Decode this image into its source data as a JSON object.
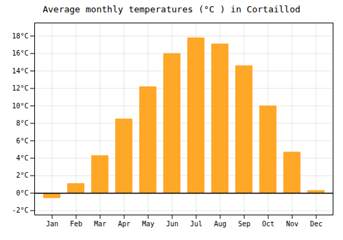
{
  "chart_data": {
    "type": "bar",
    "title": "Average monthly temperatures (°C ) in Cortaillod",
    "categories": [
      "Jan",
      "Feb",
      "Mar",
      "Apr",
      "May",
      "Jun",
      "Jul",
      "Aug",
      "Sep",
      "Oct",
      "Nov",
      "Dec"
    ],
    "values": [
      -0.6,
      1.1,
      4.3,
      8.5,
      12.2,
      16.0,
      17.8,
      17.1,
      14.6,
      10.0,
      4.7,
      0.3
    ],
    "color": "#FFA726",
    "ylim": [
      -2.5,
      19.5
    ],
    "yticks": [
      {
        "value": -2,
        "label": "-2°C"
      },
      {
        "value": 0,
        "label": "0°C"
      },
      {
        "value": 2,
        "label": "2°C"
      },
      {
        "value": 4,
        "label": "4°C"
      },
      {
        "value": 6,
        "label": "6°C"
      },
      {
        "value": 8,
        "label": "8°C"
      },
      {
        "value": 10,
        "label": "10°C"
      },
      {
        "value": 12,
        "label": "12°C"
      },
      {
        "value": 14,
        "label": "14°C"
      },
      {
        "value": 16,
        "label": "16°C"
      },
      {
        "value": 18,
        "label": "18°C"
      }
    ],
    "grid": true
  }
}
